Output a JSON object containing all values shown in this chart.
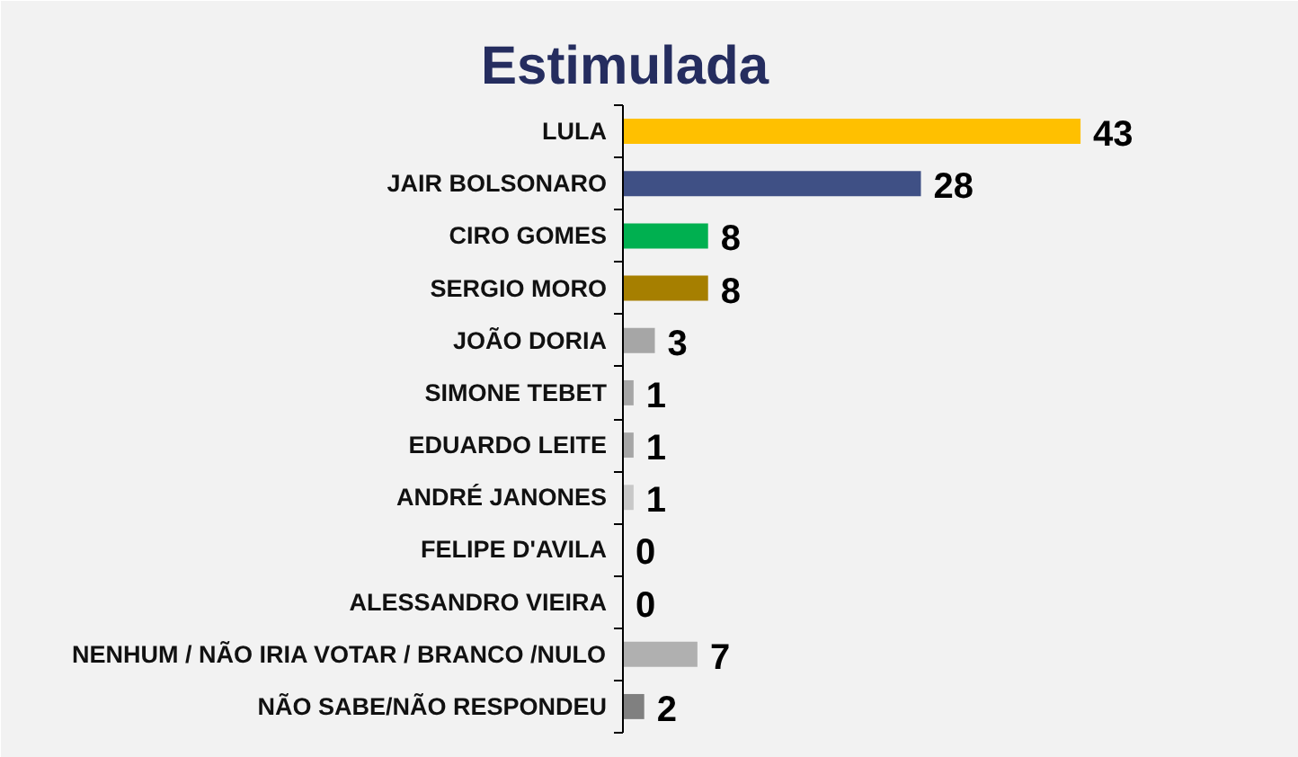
{
  "chart_data": {
    "type": "bar",
    "title": "Estimulada",
    "orientation": "horizontal",
    "categories": [
      "LULA",
      "JAIR BOLSONARO",
      "CIRO GOMES",
      "SERGIO MORO",
      "JOÃO DORIA",
      "SIMONE TEBET",
      "EDUARDO LEITE",
      "ANDRÉ JANONES",
      "FELIPE D'AVILA",
      "ALESSANDRO VIEIRA",
      "NENHUM / NÃO IRIA VOTAR / BRANCO /NULO",
      "NÃO SABE/NÃO RESPONDEU"
    ],
    "values": [
      43,
      28,
      8,
      8,
      3,
      1,
      1,
      1,
      0,
      0,
      7,
      2
    ],
    "colors": [
      "#ffc000",
      "#3f5085",
      "#00b050",
      "#a67f00",
      "#a6a6a6",
      "#a6a6a6",
      "#a6a6a6",
      "#c8c8c8",
      "#a6a6a6",
      "#a6a6a6",
      "#b0b0b0",
      "#808080"
    ],
    "data_labels": true,
    "grid": false
  }
}
